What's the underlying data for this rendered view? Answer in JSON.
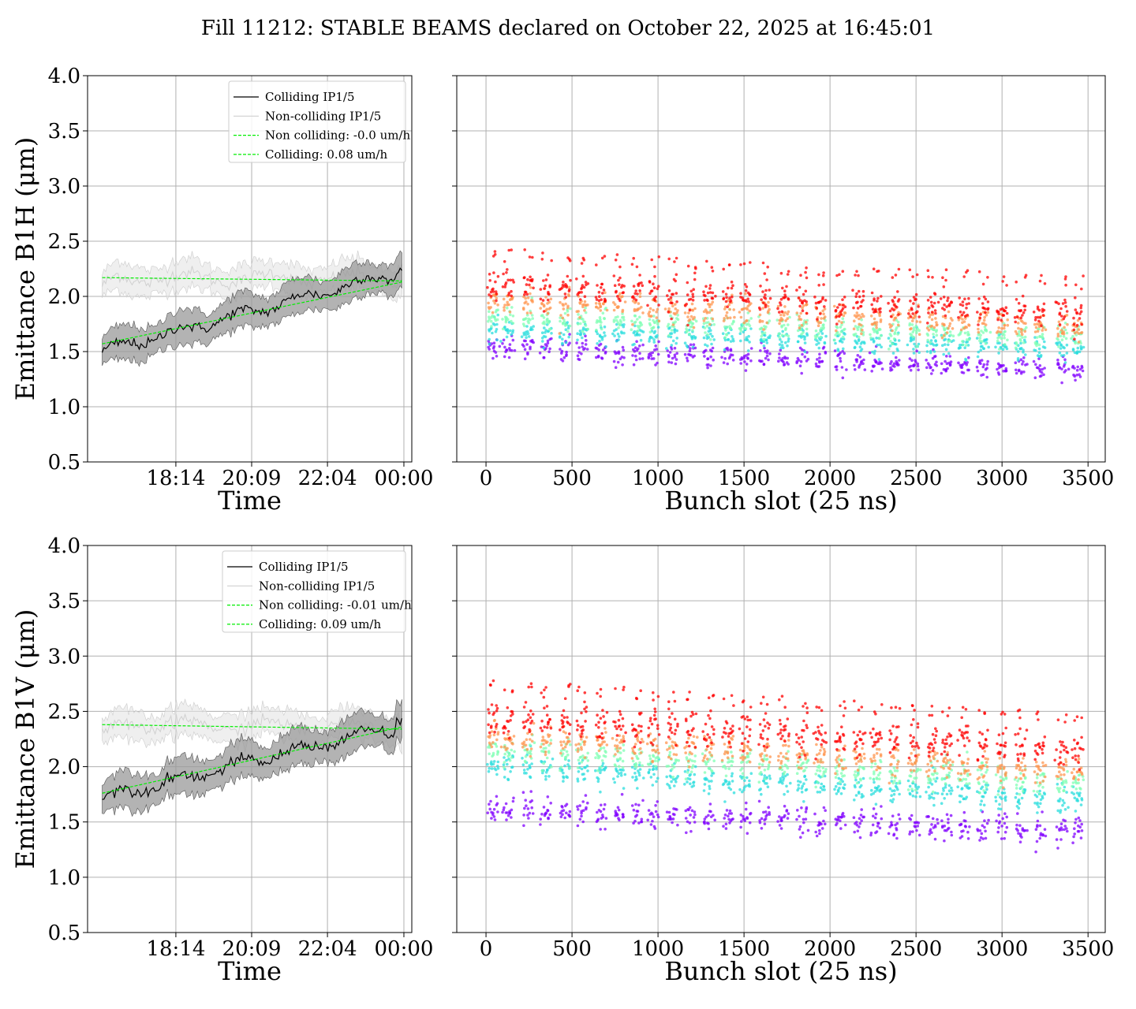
{
  "figure_title": "Fill 11212: STABLE BEAMS declared on October 22, 2025 at 16:45:01",
  "colors": {
    "colliding": "#000000",
    "non_colliding": "#d0d0d0",
    "fit": "#00ee00",
    "band_colliding": "#999999",
    "band_non_colliding": "#e4e4e4",
    "grid": "#b0b0b0",
    "scatter_palette": [
      "#8000ff",
      "#2adddd",
      "#80ffb4",
      "#ff964f",
      "#ff0000"
    ]
  },
  "chart_data": [
    {
      "id": "b1h-time",
      "type": "line",
      "xlabel": "Time",
      "ylabel": "Emittance B1H (μm)",
      "xtick_labels": [
        "18:14",
        "20:09",
        "22:04",
        "00:00"
      ],
      "xticks_hours": [
        18.233,
        20.15,
        22.067,
        24.0
      ],
      "x_range_hours": [
        16.0,
        24.2
      ],
      "ylim": [
        0.5,
        4.0
      ],
      "yticks": [
        "0.5",
        "1.0",
        "1.5",
        "2.0",
        "2.5",
        "3.0",
        "3.5",
        "4.0"
      ],
      "grid": true,
      "legend_position": "upper-right",
      "legend": [
        "Colliding IP1/5",
        "Non-colliding IP1/5",
        "Non colliding: -0.0 um/h",
        "Colliding: 0.08 um/h"
      ],
      "series": [
        {
          "name": "Colliding IP1/5",
          "kind": "line",
          "time_start": 16.37,
          "time_end": 23.95,
          "value_start": 1.5,
          "value_end": 2.23,
          "band": 0.14
        },
        {
          "name": "Non-colliding IP1/5",
          "kind": "line",
          "time_start": 16.37,
          "time_end": 23.95,
          "value_start": 2.17,
          "value_end": 2.16,
          "band": 0.12
        },
        {
          "name": "Non colliding: -0.0 um/h",
          "kind": "fit",
          "time_start": 16.37,
          "time_end": 23.95,
          "value_start": 2.17,
          "value_end": 2.14
        },
        {
          "name": "Colliding: 0.08 um/h",
          "kind": "fit",
          "time_start": 16.37,
          "time_end": 23.95,
          "value_start": 1.57,
          "value_end": 2.13
        }
      ]
    },
    {
      "id": "b1h-bunch",
      "type": "scatter",
      "xlabel": "Bunch slot (25 ns)",
      "ylabel": "",
      "xlim": [
        -170,
        3600
      ],
      "xticks": [
        0,
        500,
        1000,
        1500,
        2000,
        2500,
        3000,
        3500
      ],
      "ylim": [
        0.5,
        4.0
      ],
      "grid": true,
      "trains": [
        12,
        100,
        215,
        320,
        430,
        530,
        640,
        745,
        850,
        945,
        1055,
        1160,
        1265,
        1380,
        1480,
        1590,
        1700,
        1810,
        1915,
        2030,
        2140,
        2240,
        2345,
        2460,
        2565,
        2650,
        2750,
        2860,
        2970,
        3080,
        3190,
        3320,
        3410
      ],
      "layers": [
        {
          "color_index": 0,
          "start": 1.55,
          "end": 1.33,
          "spread": 0.05
        },
        {
          "color_index": 1,
          "start": 1.7,
          "end": 1.53,
          "spread": 0.05
        },
        {
          "color_index": 2,
          "start": 1.82,
          "end": 1.62,
          "spread": 0.05
        },
        {
          "color_index": 3,
          "start": 1.96,
          "end": 1.72,
          "spread": 0.06
        },
        {
          "color_index": 4,
          "start": 2.1,
          "end": 1.85,
          "spread": 0.07
        }
      ]
    },
    {
      "id": "b1v-time",
      "type": "line",
      "xlabel": "Time",
      "ylabel": "Emittance B1V (μm)",
      "xtick_labels": [
        "18:14",
        "20:09",
        "22:04",
        "00:00"
      ],
      "xticks_hours": [
        18.233,
        20.15,
        22.067,
        24.0
      ],
      "x_range_hours": [
        16.0,
        24.2
      ],
      "ylim": [
        0.5,
        4.0
      ],
      "yticks": [
        "0.5",
        "1.0",
        "1.5",
        "2.0",
        "2.5",
        "3.0",
        "3.5",
        "4.0"
      ],
      "grid": true,
      "legend_position": "upper-right",
      "legend": [
        "Colliding IP1/5",
        "Non-colliding IP1/5",
        "Non colliding: -0.01 um/h",
        "Colliding: 0.09 um/h"
      ],
      "series": [
        {
          "name": "Colliding IP1/5",
          "kind": "line",
          "time_start": 16.37,
          "time_end": 23.95,
          "value_start": 1.72,
          "value_end": 2.38,
          "band": 0.15
        },
        {
          "name": "Non-colliding IP1/5",
          "kind": "line",
          "time_start": 16.37,
          "time_end": 23.95,
          "value_start": 2.38,
          "value_end": 2.36,
          "band": 0.12
        },
        {
          "name": "Non colliding: -0.01 um/h",
          "kind": "fit",
          "time_start": 16.37,
          "time_end": 23.95,
          "value_start": 2.38,
          "value_end": 2.34
        },
        {
          "name": "Colliding: 0.09 um/h",
          "kind": "fit",
          "time_start": 16.37,
          "time_end": 23.95,
          "value_start": 1.76,
          "value_end": 2.36
        }
      ]
    },
    {
      "id": "b1v-bunch",
      "type": "scatter",
      "xlabel": "Bunch slot (25 ns)",
      "ylabel": "",
      "xlim": [
        -170,
        3600
      ],
      "xticks": [
        0,
        500,
        1000,
        1500,
        2000,
        2500,
        3000,
        3500
      ],
      "ylim": [
        0.5,
        4.0
      ],
      "grid": true,
      "trains": [
        12,
        100,
        215,
        320,
        430,
        530,
        640,
        745,
        850,
        945,
        1055,
        1160,
        1265,
        1380,
        1480,
        1590,
        1700,
        1810,
        1915,
        2030,
        2140,
        2240,
        2345,
        2460,
        2565,
        2650,
        2750,
        2860,
        2970,
        3080,
        3190,
        3320,
        3410
      ],
      "layers": [
        {
          "color_index": 0,
          "start": 1.62,
          "end": 1.42,
          "spread": 0.06
        },
        {
          "color_index": 1,
          "start": 2.0,
          "end": 1.7,
          "spread": 0.06
        },
        {
          "color_index": 2,
          "start": 2.15,
          "end": 1.85,
          "spread": 0.06
        },
        {
          "color_index": 3,
          "start": 2.28,
          "end": 1.95,
          "spread": 0.06
        },
        {
          "color_index": 4,
          "start": 2.45,
          "end": 2.15,
          "spread": 0.08
        }
      ]
    }
  ]
}
